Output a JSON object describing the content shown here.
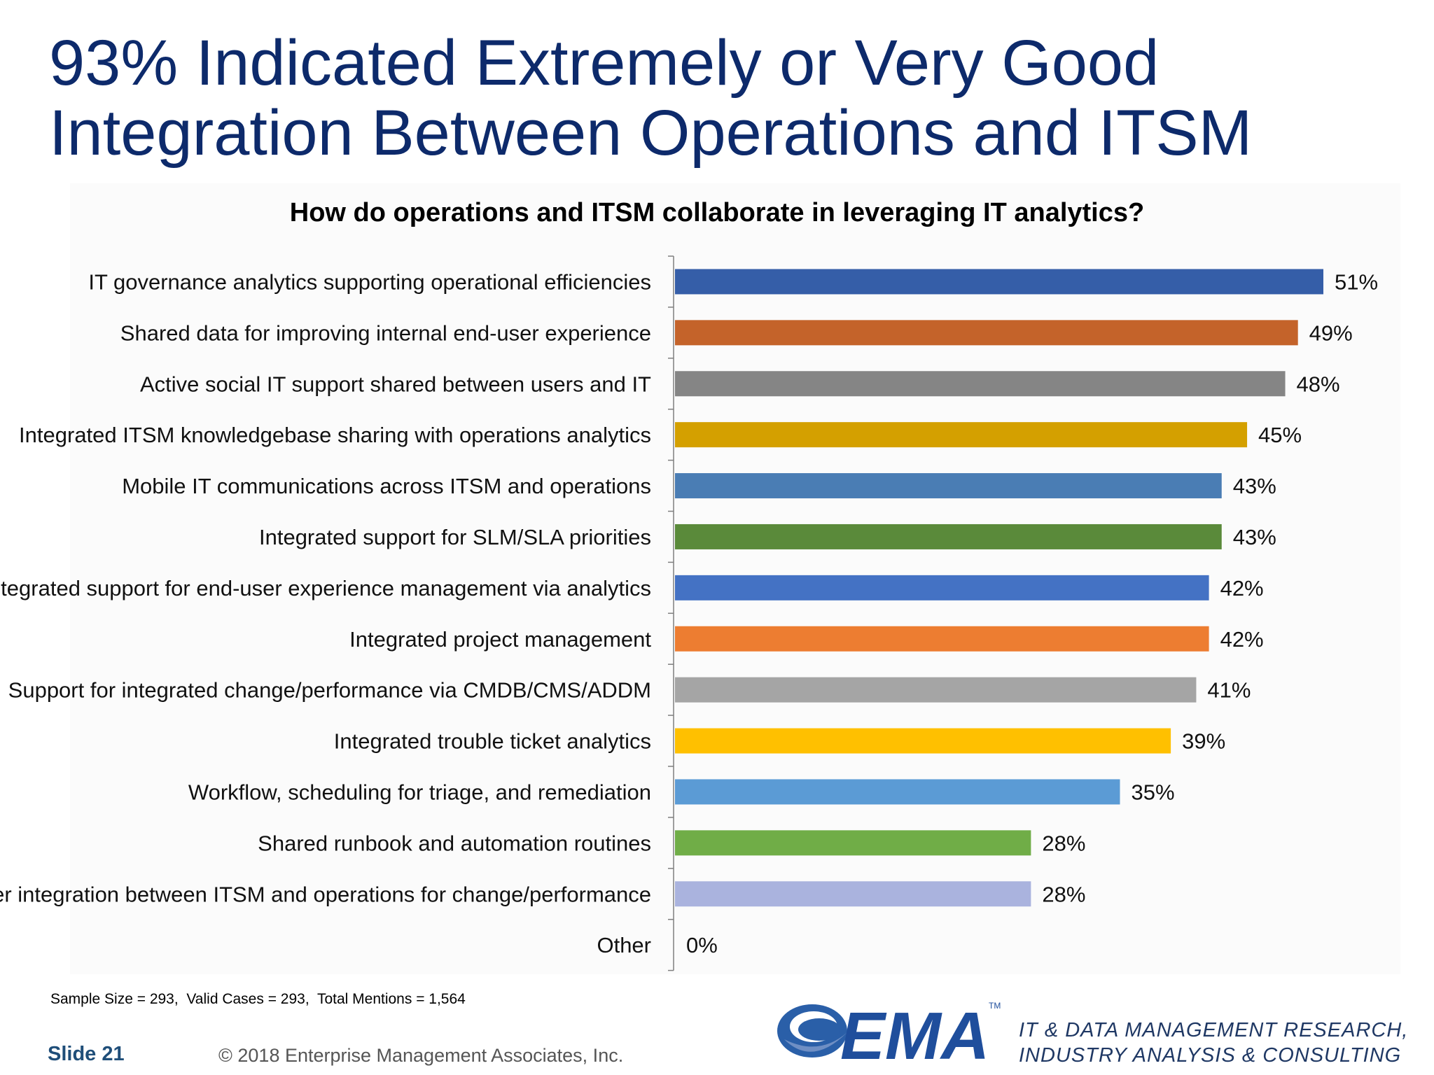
{
  "slide": {
    "title_line1": "93% Indicated Extremely or Very Good",
    "title_line2": "Integration Between Operations and ITSM",
    "sample_note": "Sample Size = 293,  Valid Cases = 293,  Total Mentions = 1,564",
    "slide_number": "Slide 21",
    "copyright": "© 2018 Enterprise Management Associates, Inc.",
    "logo_text": "EMA",
    "tagline_line1": "IT & DATA MANAGEMENT RESEARCH,",
    "tagline_line2": "INDUSTRY ANALYSIS & CONSULTING",
    "colors": {
      "title": "#0d2a6b",
      "logo": "#1f4e9c"
    }
  },
  "chart_data": {
    "type": "bar",
    "orientation": "horizontal",
    "title": "How do operations and ITSM collaborate in leveraging IT analytics?",
    "categories": [
      "IT governance analytics supporting operational efficiencies",
      "Shared data for improving internal end-user experience",
      "Active social IT support shared between users and IT",
      "Integrated ITSM knowledgebase sharing with operations analytics",
      "Mobile IT communications across ITSM and operations",
      "Integrated support for SLM/SLA priorities",
      "Integrated support for end-user experience management via analytics",
      "Integrated project management",
      "Support for integrated change/performance via CMDB/CMS/ADDM",
      "Integrated trouble ticket analytics",
      "Workflow, scheduling for triage, and remediation",
      "Shared runbook and automation routines",
      "Other integration between ITSM and operations for change/performance",
      "Other"
    ],
    "values": [
      51,
      49,
      48,
      45,
      43,
      43,
      42,
      42,
      41,
      39,
      35,
      28,
      28,
      0
    ],
    "value_labels": [
      "51%",
      "49%",
      "48%",
      "45%",
      "43%",
      "43%",
      "42%",
      "42%",
      "41%",
      "39%",
      "35%",
      "28%",
      "28%",
      "0%"
    ],
    "colors": [
      "#355ea8",
      "#c4632a",
      "#858585",
      "#d4a000",
      "#4a7db4",
      "#5a8a3a",
      "#4472c4",
      "#ed7d31",
      "#a5a5a5",
      "#ffc000",
      "#5b9bd5",
      "#70ad47",
      "#aab3de",
      "#4472c4"
    ],
    "xlim": [
      0,
      51
    ],
    "unit": "%",
    "grid": false,
    "legend": "none"
  }
}
